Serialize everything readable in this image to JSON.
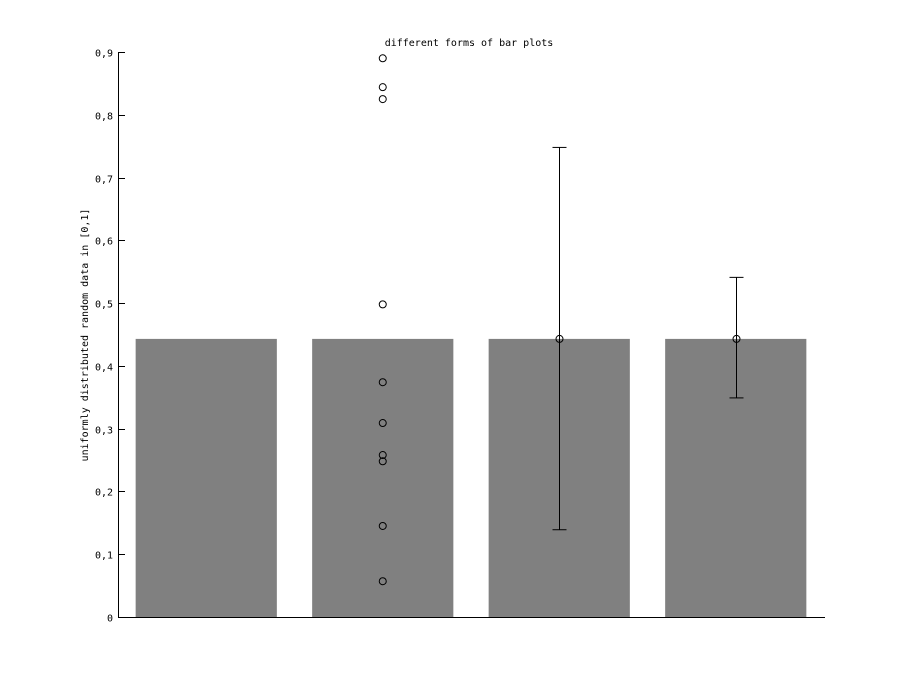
{
  "chart_data": {
    "type": "bar",
    "title": "different forms of bar plots",
    "xlabel": "",
    "ylabel": "uniformly distributed random data in [0,1]",
    "x": [
      1,
      2,
      3,
      4
    ],
    "values": [
      0.443,
      0.443,
      0.443,
      0.443
    ],
    "xlim": [
      0.5,
      4.5
    ],
    "ylim": [
      0,
      0.9
    ],
    "yticks": [
      0,
      0.1,
      0.2,
      0.3,
      0.4,
      0.5,
      0.6,
      0.7,
      0.8,
      0.9
    ],
    "ytick_labels": [
      "0",
      "0,1",
      "0,2",
      "0,3",
      "0,4",
      "0,5",
      "0,6",
      "0,7",
      "0,8",
      "0,9"
    ],
    "bar_width": 0.8,
    "bar_color": "#808080",
    "grid": false,
    "scatter_points": {
      "x": 2,
      "y": [
        0.89,
        0.844,
        0.825,
        0.498,
        0.374,
        0.309,
        0.258,
        0.248,
        0.145,
        0.057
      ]
    },
    "error_bars": [
      {
        "x": 3,
        "mean": 0.443,
        "low": 0.139,
        "high": 0.748
      },
      {
        "x": 4,
        "mean": 0.443,
        "low": 0.349,
        "high": 0.541
      }
    ]
  }
}
